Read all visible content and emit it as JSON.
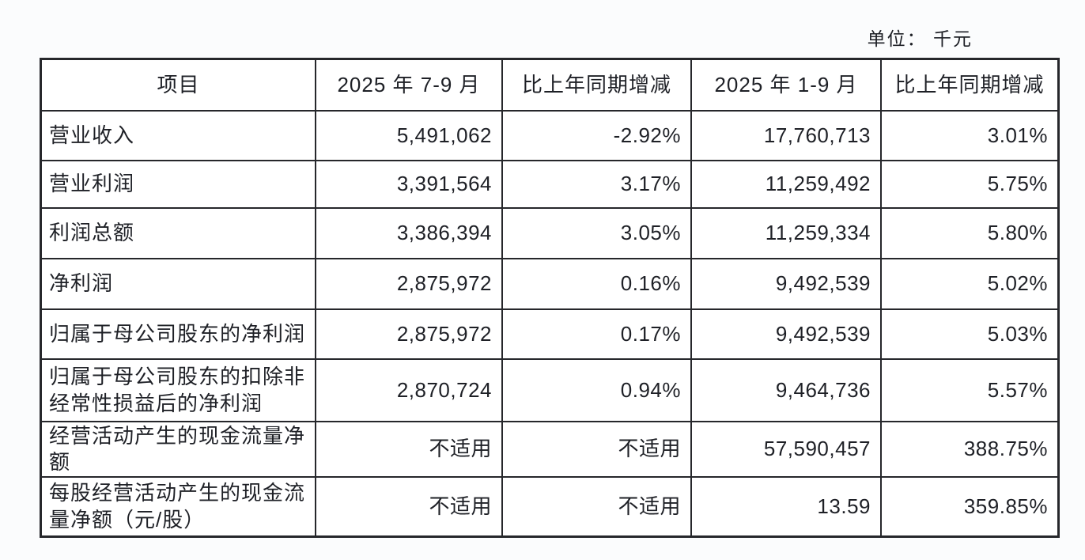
{
  "unit_label": "单位： 千元",
  "table": {
    "headers": [
      "项目",
      "2025 年 7-9 月",
      "比上年同期增减",
      "2025 年 1-9 月",
      "比上年同期增减"
    ],
    "rows": [
      {
        "cells": [
          "营业收入",
          "5,491,062",
          "-2.92%",
          "17,760,713",
          "3.01%"
        ]
      },
      {
        "cells": [
          "营业利润",
          "3,391,564",
          "3.17%",
          "11,259,492",
          "5.75%"
        ]
      },
      {
        "cells": [
          "利润总额",
          "3,386,394",
          "3.05%",
          "11,259,334",
          "5.80%"
        ]
      },
      {
        "cells": [
          "净利润",
          "2,875,972",
          "0.16%",
          "9,492,539",
          "5.02%"
        ]
      },
      {
        "cells": [
          "归属于母公司股东的净利润",
          "2,875,972",
          "0.17%",
          "9,492,539",
          "5.03%"
        ]
      },
      {
        "cells": [
          "归属于母公司股东的扣除非\n经常性损益后的净利润",
          "2,870,724",
          "0.94%",
          "9,464,736",
          "5.57%"
        ]
      },
      {
        "cells": [
          "经营活动产生的现金流量净\n额",
          "不适用",
          "不适用",
          "57,590,457",
          "388.75%"
        ]
      },
      {
        "cells": [
          "每股经营活动产生的现金流\n量净额（元/股）",
          "不适用",
          "不适用",
          "13.59",
          "359.85%"
        ]
      }
    ]
  },
  "colors": {
    "page-bg": "#fbfcfd",
    "table-bg": "#ffffff",
    "border": "#26272b",
    "text": "#1e2026"
  }
}
